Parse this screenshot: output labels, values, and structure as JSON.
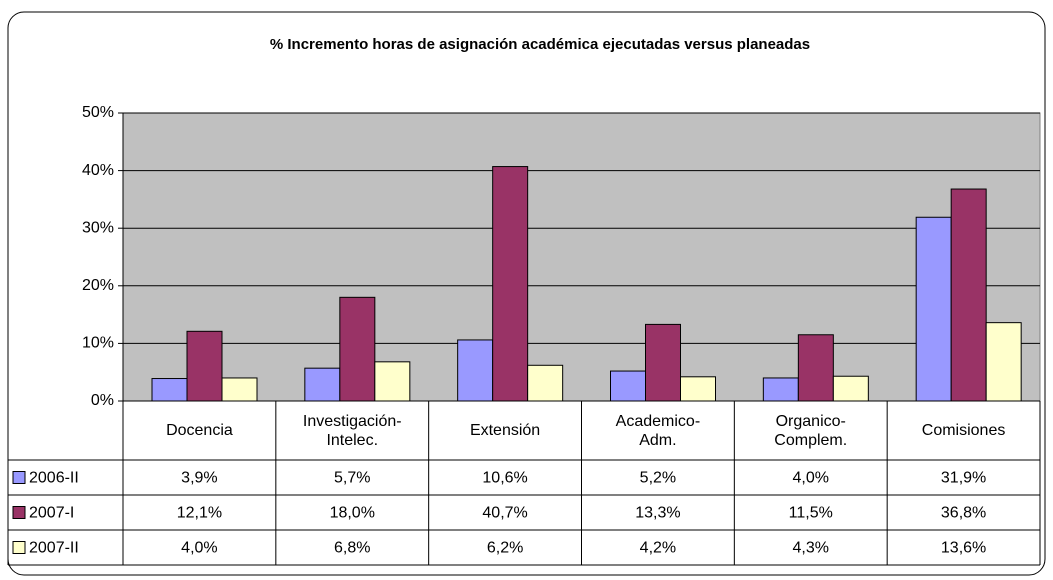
{
  "chart_data": {
    "type": "bar",
    "title": "% Incremento  horas de asignación académica ejecutadas versus  planeadas",
    "categories": [
      "Docencia",
      "Investigación-\nIntelec.",
      "Extensión",
      "Academico-\nAdm.",
      "Organico-\nComplem.",
      "Comisiones"
    ],
    "series": [
      {
        "name": "2006-II",
        "color": "#9999ff",
        "values": [
          3.9,
          5.7,
          10.6,
          5.2,
          4.0,
          31.9
        ],
        "value_labels": [
          "3,9%",
          "5,7%",
          "10,6%",
          "5,2%",
          "4,0%",
          "31,9%"
        ]
      },
      {
        "name": "2007-I",
        "color": "#993366",
        "values": [
          12.1,
          18.0,
          40.7,
          13.3,
          11.5,
          36.8
        ],
        "value_labels": [
          "12,1%",
          "18,0%",
          "40,7%",
          "13,3%",
          "11,5%",
          "36,8%"
        ]
      },
      {
        "name": "2007-II",
        "color": "#ffffcc",
        "values": [
          4.0,
          6.8,
          6.2,
          4.2,
          4.3,
          13.6
        ],
        "value_labels": [
          "4,0%",
          "6,8%",
          "6,2%",
          "4,2%",
          "4,3%",
          "13,6%"
        ]
      }
    ],
    "ylim": [
      0,
      50
    ],
    "yticks": [
      {
        "value": 0,
        "label": "0%"
      },
      {
        "value": 10,
        "label": "10%"
      },
      {
        "value": 20,
        "label": "20%"
      },
      {
        "value": 30,
        "label": "30%"
      },
      {
        "value": 40,
        "label": "40%"
      },
      {
        "value": 50,
        "label": "50%"
      }
    ],
    "grid": true
  }
}
